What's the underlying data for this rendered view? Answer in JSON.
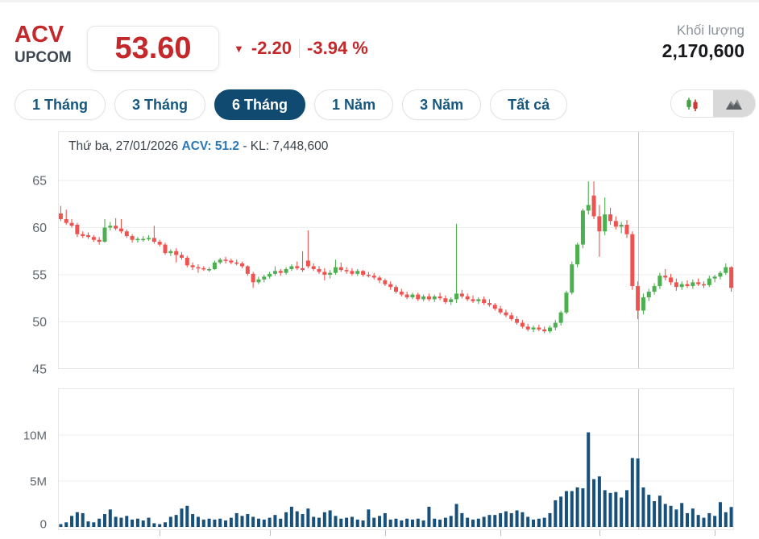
{
  "header": {
    "symbol": "ACV",
    "exchange": "UPCOM",
    "price": "53.60",
    "down_arrow": "▼",
    "change": "-2.20",
    "change_percent": "-3.94 %",
    "volume_label": "Khối lượng",
    "volume_value": "2,170,600",
    "accent_red": "#c5282a"
  },
  "tabs": [
    {
      "label": "1 Tháng",
      "selected": false
    },
    {
      "label": "3 Tháng",
      "selected": false
    },
    {
      "label": "6 Tháng",
      "selected": true
    },
    {
      "label": "1 Năm",
      "selected": false
    },
    {
      "label": "3 Năm",
      "selected": false
    },
    {
      "label": "Tất cả",
      "selected": false
    }
  ],
  "chart_toggle": {
    "candlestick_icon": "candlestick-chart",
    "area_icon": "area-chart",
    "active": "area-chart"
  },
  "tooltip": {
    "date": "Thứ ba, 27/01/2026",
    "price_part": "ACV: 51.2",
    "volume_part": "- KL: 7,448,600"
  },
  "chart_data": {
    "type": "candlestick_with_volume",
    "price_axis": {
      "ticks": [
        65,
        60,
        55,
        50,
        45
      ],
      "min": 45,
      "max": 70
    },
    "volume_axis": {
      "ticks": [
        {
          "label": "10M",
          "value": 10
        },
        {
          "label": "5M",
          "value": 5
        },
        {
          "label": "0",
          "value": 0
        }
      ],
      "unit": "millions"
    },
    "grid": true,
    "crosshair_index": 105,
    "month_tick_indices": [
      18,
      38,
      59,
      80,
      98,
      119
    ],
    "colors": {
      "up": "#4caf50",
      "down": "#ef5350",
      "volume": "#17507a",
      "grid": "#ededed",
      "border": "#e7e7e7",
      "crosshair": "#c9c9c9",
      "axis_text": "#5f666d"
    },
    "candles": [
      [
        61.5,
        62.3,
        60.7,
        60.9
      ],
      [
        60.9,
        61.9,
        60.3,
        60.5
      ],
      [
        60.5,
        60.9,
        60.0,
        60.2
      ],
      [
        60.3,
        60.5,
        59.0,
        59.3
      ],
      [
        59.3,
        59.6,
        58.9,
        59.1
      ],
      [
        59.2,
        59.5,
        58.8,
        59.0
      ],
      [
        59.0,
        59.2,
        58.5,
        58.7
      ],
      [
        58.7,
        59.0,
        58.2,
        58.5
      ],
      [
        58.5,
        60.9,
        58.4,
        60.0
      ],
      [
        60.0,
        60.6,
        59.7,
        60.2
      ],
      [
        60.2,
        61.0,
        59.7,
        59.9
      ],
      [
        59.9,
        60.9,
        59.4,
        59.6
      ],
      [
        59.6,
        59.8,
        58.9,
        59.1
      ],
      [
        59.1,
        59.3,
        58.4,
        58.7
      ],
      [
        58.7,
        59.0,
        58.4,
        58.8
      ],
      [
        58.8,
        59.1,
        58.5,
        58.8
      ],
      [
        58.8,
        59.2,
        58.6,
        58.9
      ],
      [
        58.9,
        60.2,
        58.3,
        58.5
      ],
      [
        58.5,
        58.7,
        58.0,
        58.2
      ],
      [
        58.2,
        58.4,
        57.1,
        57.3
      ],
      [
        57.3,
        57.7,
        57.0,
        57.5
      ],
      [
        57.5,
        57.8,
        56.3,
        57.1
      ],
      [
        57.1,
        57.4,
        56.6,
        56.8
      ],
      [
        56.8,
        57.0,
        55.8,
        56.0
      ],
      [
        56.0,
        56.3,
        55.5,
        55.8
      ],
      [
        55.8,
        56.1,
        55.2,
        55.7
      ],
      [
        55.7,
        55.9,
        55.4,
        55.6
      ],
      [
        55.6,
        55.8,
        55.3,
        55.6
      ],
      [
        55.6,
        56.5,
        55.5,
        56.3
      ],
      [
        56.3,
        56.8,
        56.1,
        56.6
      ],
      [
        56.6,
        56.9,
        56.2,
        56.5
      ],
      [
        56.5,
        56.7,
        56.1,
        56.3
      ],
      [
        56.3,
        56.6,
        56.0,
        56.2
      ],
      [
        56.2,
        56.4,
        55.7,
        55.9
      ],
      [
        55.9,
        56.0,
        54.9,
        55.1
      ],
      [
        55.1,
        55.3,
        53.6,
        54.2
      ],
      [
        54.2,
        54.8,
        54.0,
        54.5
      ],
      [
        54.5,
        55.0,
        54.2,
        54.8
      ],
      [
        54.8,
        55.3,
        54.6,
        55.1
      ],
      [
        55.1,
        55.9,
        54.9,
        55.4
      ],
      [
        55.4,
        55.6,
        54.9,
        55.2
      ],
      [
        55.2,
        55.8,
        55.0,
        55.6
      ],
      [
        55.6,
        56.1,
        55.4,
        55.9
      ],
      [
        55.9,
        56.4,
        55.5,
        55.7
      ],
      [
        55.7,
        57.5,
        55.3,
        55.5
      ],
      [
        56.5,
        59.7,
        55.7,
        55.9
      ],
      [
        55.9,
        56.2,
        55.4,
        55.6
      ],
      [
        55.6,
        55.9,
        55.1,
        55.3
      ],
      [
        55.3,
        55.7,
        54.4,
        55.0
      ],
      [
        55.0,
        55.5,
        54.6,
        55.2
      ],
      [
        55.2,
        56.6,
        55.0,
        55.8
      ],
      [
        55.8,
        56.3,
        55.3,
        55.5
      ],
      [
        55.5,
        55.8,
        55.1,
        55.4
      ],
      [
        55.4,
        55.7,
        54.9,
        55.1
      ],
      [
        55.1,
        55.6,
        54.9,
        55.4
      ],
      [
        55.4,
        55.5,
        54.8,
        55.0
      ],
      [
        55.0,
        55.3,
        54.7,
        54.9
      ],
      [
        54.9,
        55.2,
        54.5,
        54.7
      ],
      [
        54.7,
        54.9,
        54.1,
        54.4
      ],
      [
        54.4,
        54.6,
        53.8,
        54.0
      ],
      [
        54.0,
        54.3,
        53.4,
        53.7
      ],
      [
        53.7,
        53.9,
        53.0,
        53.2
      ],
      [
        53.2,
        53.5,
        52.7,
        52.9
      ],
      [
        52.9,
        53.2,
        52.4,
        52.6
      ],
      [
        52.6,
        53.1,
        52.4,
        52.9
      ],
      [
        52.9,
        53.1,
        52.2,
        52.4
      ],
      [
        52.4,
        52.9,
        52.2,
        52.7
      ],
      [
        52.7,
        53.0,
        52.2,
        52.4
      ],
      [
        52.4,
        52.9,
        52.1,
        52.7
      ],
      [
        52.7,
        53.1,
        52.3,
        52.5
      ],
      [
        52.5,
        52.8,
        51.9,
        52.1
      ],
      [
        52.1,
        52.6,
        51.8,
        52.4
      ],
      [
        52.4,
        60.4,
        52.0,
        53.0
      ],
      [
        53.0,
        53.4,
        52.5,
        52.7
      ],
      [
        52.7,
        53.0,
        52.2,
        52.4
      ],
      [
        52.4,
        52.8,
        52.0,
        52.2
      ],
      [
        52.2,
        52.6,
        51.9,
        52.4
      ],
      [
        52.4,
        52.7,
        51.8,
        52.0
      ],
      [
        52.0,
        52.4,
        51.6,
        51.8
      ],
      [
        51.8,
        52.0,
        51.2,
        51.4
      ],
      [
        51.4,
        51.7,
        50.8,
        51.0
      ],
      [
        51.0,
        51.3,
        50.5,
        50.7
      ],
      [
        50.7,
        51.0,
        50.1,
        50.3
      ],
      [
        50.3,
        50.6,
        49.7,
        49.9
      ],
      [
        49.9,
        50.2,
        49.3,
        49.5
      ],
      [
        49.5,
        49.8,
        49.0,
        49.2
      ],
      [
        49.2,
        49.6,
        48.9,
        49.4
      ],
      [
        49.4,
        49.7,
        49.0,
        49.2
      ],
      [
        49.2,
        49.5,
        48.8,
        49.0
      ],
      [
        49.0,
        49.6,
        48.8,
        49.4
      ],
      [
        49.4,
        50.2,
        49.1,
        49.9
      ],
      [
        49.9,
        51.2,
        49.6,
        51.0
      ],
      [
        51.0,
        53.3,
        50.8,
        53.1
      ],
      [
        53.1,
        56.4,
        52.9,
        56.1
      ],
      [
        56.1,
        58.4,
        55.8,
        58.2
      ],
      [
        58.2,
        62.0,
        57.8,
        61.8
      ],
      [
        61.8,
        64.9,
        61.4,
        62.4
      ],
      [
        63.4,
        64.9,
        60.9,
        61.2
      ],
      [
        61.2,
        62.4,
        56.9,
        59.6
      ],
      [
        59.6,
        63.2,
        59.2,
        61.4
      ],
      [
        61.4,
        62.1,
        60.3,
        60.7
      ],
      [
        60.7,
        61.2,
        59.8,
        60.1
      ],
      [
        60.1,
        60.6,
        59.4,
        60.3
      ],
      [
        60.3,
        60.8,
        58.9,
        59.3
      ],
      [
        59.3,
        59.6,
        53.4,
        53.8
      ],
      [
        53.8,
        54.3,
        50.3,
        51.2
      ],
      [
        51.2,
        53.0,
        50.8,
        52.6
      ],
      [
        52.6,
        53.5,
        52.2,
        53.2
      ],
      [
        53.2,
        54.1,
        52.9,
        53.8
      ],
      [
        53.8,
        55.2,
        53.5,
        54.9
      ],
      [
        54.9,
        55.6,
        54.4,
        54.7
      ],
      [
        54.7,
        55.1,
        53.9,
        54.2
      ],
      [
        54.2,
        54.6,
        53.3,
        53.7
      ],
      [
        53.7,
        54.3,
        53.4,
        54.0
      ],
      [
        54.0,
        54.4,
        53.6,
        53.8
      ],
      [
        53.8,
        54.5,
        53.5,
        54.2
      ],
      [
        54.2,
        54.6,
        53.8,
        54.0
      ],
      [
        54.0,
        54.3,
        53.6,
        53.9
      ],
      [
        53.9,
        54.9,
        53.7,
        54.6
      ],
      [
        54.6,
        55.0,
        54.2,
        54.8
      ],
      [
        54.8,
        55.4,
        54.5,
        55.2
      ],
      [
        55.2,
        56.2,
        55.0,
        55.8
      ],
      [
        55.8,
        55.9,
        53.2,
        53.6
      ]
    ],
    "volumes_millions": [
      0.3,
      0.5,
      1.2,
      1.6,
      1.5,
      0.6,
      0.5,
      0.9,
      1.4,
      1.9,
      1.1,
      1.0,
      1.2,
      0.8,
      0.9,
      0.7,
      1.0,
      0.4,
      0.3,
      0.5,
      1.1,
      1.3,
      2.0,
      2.3,
      1.4,
      1.1,
      0.8,
      0.9,
      0.8,
      0.9,
      0.7,
      1.0,
      1.5,
      1.2,
      1.4,
      1.1,
      0.9,
      0.8,
      1.0,
      1.3,
      0.9,
      1.6,
      2.2,
      1.7,
      1.4,
      2.0,
      1.1,
      1.0,
      1.6,
      1.8,
      1.2,
      0.9,
      1.0,
      1.1,
      0.8,
      0.7,
      1.9,
      1.0,
      1.2,
      1.5,
      0.8,
      0.9,
      0.7,
      0.9,
      0.8,
      0.9,
      0.7,
      2.2,
      0.9,
      0.8,
      1.0,
      1.2,
      2.5,
      1.5,
      1.0,
      0.8,
      0.9,
      1.1,
      1.3,
      1.3,
      1.5,
      1.7,
      1.5,
      1.8,
      1.6,
      1.1,
      0.8,
      0.9,
      1.0,
      1.5,
      2.9,
      3.3,
      3.9,
      3.9,
      4.3,
      4.2,
      10.3,
      5.2,
      5.5,
      4.0,
      3.7,
      3.8,
      3.2,
      4.0,
      7.5,
      7.45,
      4.3,
      3.5,
      2.8,
      3.4,
      2.5,
      2.3,
      1.9,
      2.6,
      1.5,
      2.0,
      1.3,
      1.0,
      1.5,
      1.2,
      2.7,
      1.6,
      2.17
    ]
  }
}
